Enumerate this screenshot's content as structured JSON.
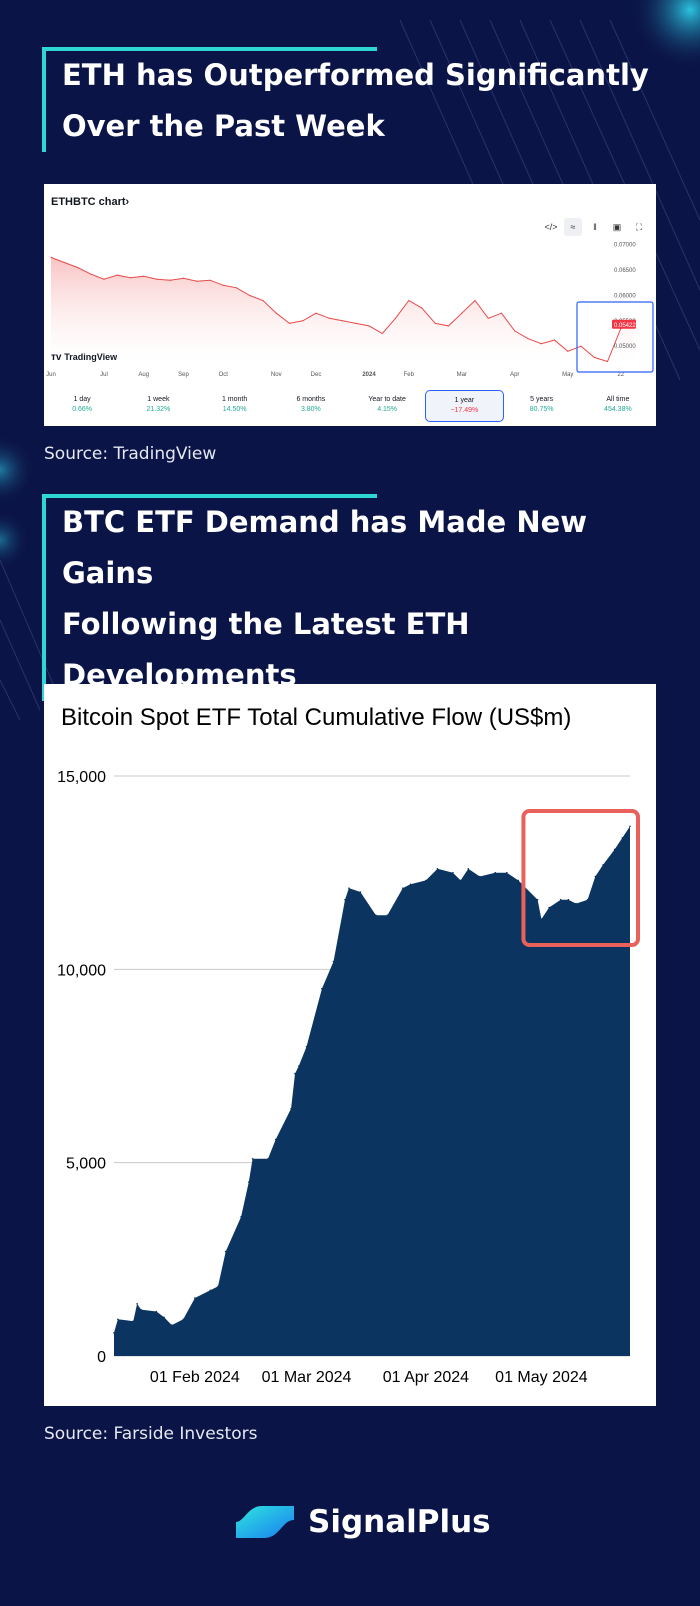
{
  "section1": {
    "heading": [
      "ETH has Outperformed Significantly",
      "Over the Past Week"
    ],
    "source": "Source: TradingView",
    "widget": {
      "title": "ETHBTC chart›",
      "logo": "TradingView",
      "tools": [
        "</>",
        "≈",
        "‖",
        "▣",
        "⛶"
      ],
      "periods": [
        {
          "label": "1 day",
          "change": "0.66%"
        },
        {
          "label": "1 week",
          "change": "21.32%"
        },
        {
          "label": "1 month",
          "change": "14.50%"
        },
        {
          "label": "6 months",
          "change": "3.80%"
        },
        {
          "label": "Year to date",
          "change": "4.15%"
        },
        {
          "label": "1 year",
          "change": "−17.49%",
          "selected": true
        },
        {
          "label": "5 years",
          "change": "80.75%"
        },
        {
          "label": "All time",
          "change": "454.38%"
        }
      ]
    }
  },
  "section2": {
    "heading": [
      "BTC ETF Demand has Made New Gains",
      "Following the Latest ETH",
      "Developments"
    ],
    "source": "Source: Farside Investors"
  },
  "brand": {
    "name": "SignalPlus"
  },
  "colors": {
    "background": "#0b1446",
    "accent": "#2fd6d6",
    "tv_line": "#e84a4a",
    "etf_fill": "#0c3461",
    "highlight": "#e8615a",
    "tv_highlight": "#2962ff"
  },
  "chart_data": [
    {
      "type": "line",
      "title": "ETHBTC chart›",
      "x_tick_labels": [
        "Jun",
        "Jul",
        "Aug",
        "Sep",
        "Oct",
        "Nov",
        "Dec",
        "2024",
        "Feb",
        "Mar",
        "Apr",
        "May",
        "22"
      ],
      "y_tick_labels": [
        "0.07000",
        "0.06500",
        "0.06000",
        "0.05500",
        "0.05000"
      ],
      "ylim": [
        0.0465,
        0.0725
      ],
      "last_value_label": "0.05422",
      "highlight": "recent week rally (May 20–22)",
      "points": [
        [
          "Jun",
          0.0675
        ],
        [
          "Jun",
          0.0665
        ],
        [
          "Jun",
          0.0655
        ],
        [
          "Jun",
          0.0642
        ],
        [
          "Jul",
          0.0632
        ],
        [
          "Jul",
          0.064
        ],
        [
          "Jul",
          0.0635
        ],
        [
          "Aug",
          0.0638
        ],
        [
          "Aug",
          0.0632
        ],
        [
          "Aug",
          0.063
        ],
        [
          "Sep",
          0.0634
        ],
        [
          "Sep",
          0.0628
        ],
        [
          "Sep",
          0.063
        ],
        [
          "Oct",
          0.062
        ],
        [
          "Oct",
          0.0615
        ],
        [
          "Oct",
          0.06
        ],
        [
          "Oct",
          0.059
        ],
        [
          "Nov",
          0.0565
        ],
        [
          "Nov",
          0.0545
        ],
        [
          "Nov",
          0.055
        ],
        [
          "Dec",
          0.0565
        ],
        [
          "Dec",
          0.0555
        ],
        [
          "Dec",
          0.055
        ],
        [
          "Dec",
          0.0545
        ],
        [
          "2024",
          0.054
        ],
        [
          "2024",
          0.0525
        ],
        [
          "2024",
          0.0555
        ],
        [
          "Feb",
          0.059
        ],
        [
          "Feb",
          0.0575
        ],
        [
          "Feb",
          0.0545
        ],
        [
          "Feb",
          0.054
        ],
        [
          "Mar",
          0.0565
        ],
        [
          "Mar",
          0.059
        ],
        [
          "Mar",
          0.0555
        ],
        [
          "Mar",
          0.0565
        ],
        [
          "Apr",
          0.053
        ],
        [
          "Apr",
          0.0515
        ],
        [
          "Apr",
          0.0505
        ],
        [
          "Apr",
          0.0512
        ],
        [
          "May",
          0.049
        ],
        [
          "May",
          0.05
        ],
        [
          "May",
          0.0478
        ],
        [
          "May",
          0.047
        ],
        [
          "22",
          0.0535
        ],
        [
          "22",
          0.0542
        ]
      ]
    },
    {
      "type": "area",
      "title": "Bitcoin Spot ETF Total Cumulative Flow (US$m)",
      "xlabel": "",
      "ylabel": "",
      "ylim": [
        0,
        15000
      ],
      "y_ticks": [
        0,
        5000,
        10000,
        15000
      ],
      "y_tick_labels": [
        "0",
        "5,000",
        "10,000",
        "15,000"
      ],
      "x_ticks": [
        "2024-02-01",
        "2024-03-01",
        "2024-04-01",
        "2024-05-01"
      ],
      "x_tick_labels": [
        "01 Feb 2024",
        "01 Mar 2024",
        "01 Apr 2024",
        "01 May 2024"
      ],
      "grid": true,
      "highlight": {
        "from": "2024-05-01",
        "to": "2024-05-24",
        "label": ""
      },
      "points": [
        [
          "2024-01-11",
          600
        ],
        [
          "2024-01-12",
          950
        ],
        [
          "2024-01-16",
          900
        ],
        [
          "2024-01-17",
          1350
        ],
        [
          "2024-01-18",
          1200
        ],
        [
          "2024-01-22",
          1150
        ],
        [
          "2024-01-24",
          1000
        ],
        [
          "2024-01-26",
          800
        ],
        [
          "2024-01-29",
          950
        ],
        [
          "2024-02-01",
          1500
        ],
        [
          "2024-02-05",
          1700
        ],
        [
          "2024-02-07",
          1800
        ],
        [
          "2024-02-09",
          2700
        ],
        [
          "2024-02-13",
          3600
        ],
        [
          "2024-02-15",
          4500
        ],
        [
          "2024-02-16",
          5100
        ],
        [
          "2024-02-20",
          5100
        ],
        [
          "2024-02-22",
          5600
        ],
        [
          "2024-02-26",
          6400
        ],
        [
          "2024-02-27",
          7300
        ],
        [
          "2024-02-28",
          7500
        ],
        [
          "2024-03-01",
          8000
        ],
        [
          "2024-03-05",
          9500
        ],
        [
          "2024-03-08",
          10200
        ],
        [
          "2024-03-11",
          11800
        ],
        [
          "2024-03-12",
          12100
        ],
        [
          "2024-03-15",
          12000
        ],
        [
          "2024-03-19",
          11400
        ],
        [
          "2024-03-22",
          11400
        ],
        [
          "2024-03-26",
          12100
        ],
        [
          "2024-03-28",
          12200
        ],
        [
          "2024-04-01",
          12300
        ],
        [
          "2024-04-04",
          12600
        ],
        [
          "2024-04-08",
          12500
        ],
        [
          "2024-04-10",
          12300
        ],
        [
          "2024-04-12",
          12600
        ],
        [
          "2024-04-15",
          12400
        ],
        [
          "2024-04-19",
          12500
        ],
        [
          "2024-04-22",
          12500
        ],
        [
          "2024-04-25",
          12300
        ],
        [
          "2024-04-30",
          11800
        ],
        [
          "2024-05-01",
          11300
        ],
        [
          "2024-05-03",
          11600
        ],
        [
          "2024-05-06",
          11800
        ],
        [
          "2024-05-08",
          11800
        ],
        [
          "2024-05-10",
          11700
        ],
        [
          "2024-05-13",
          11800
        ],
        [
          "2024-05-15",
          12400
        ],
        [
          "2024-05-17",
          12700
        ],
        [
          "2024-05-20",
          13100
        ],
        [
          "2024-05-22",
          13400
        ],
        [
          "2024-05-24",
          13700
        ]
      ]
    }
  ]
}
